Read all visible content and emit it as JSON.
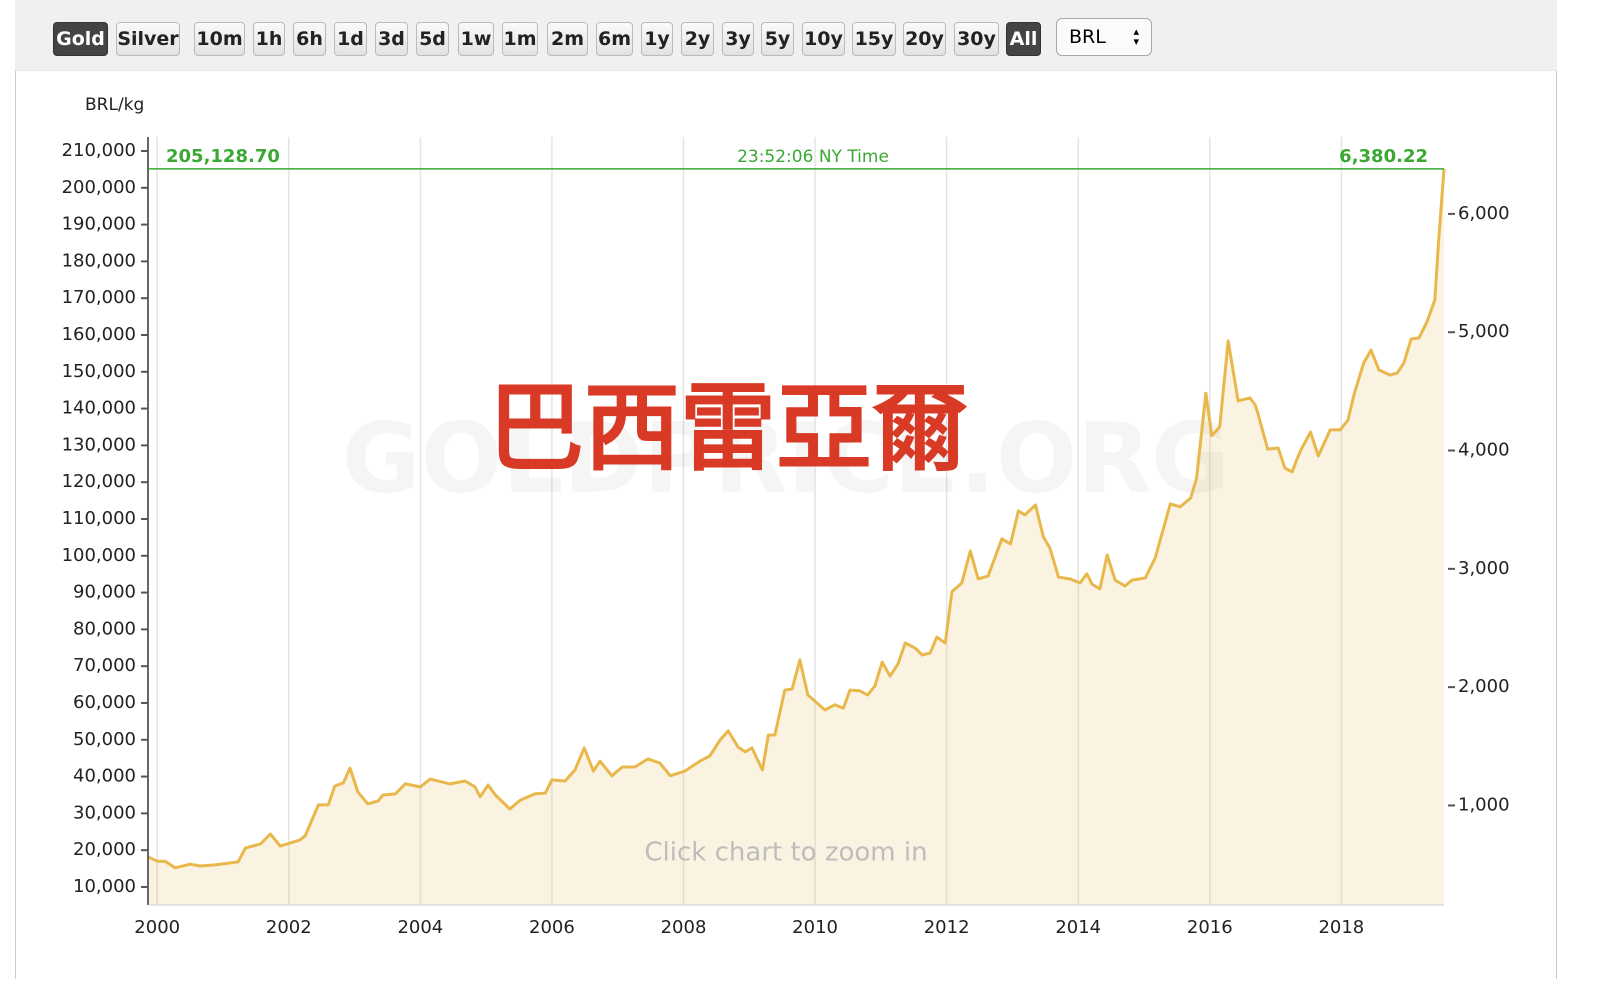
{
  "toolbar": {
    "metals": [
      "Gold",
      "Silver"
    ],
    "ranges": [
      "10m",
      "1h",
      "6h",
      "1d",
      "3d",
      "5d",
      "1w",
      "1m",
      "2m",
      "6m",
      "1y",
      "2y",
      "3y",
      "5y",
      "10y",
      "15y",
      "20y",
      "30y",
      "All"
    ],
    "currency": "BRL"
  },
  "chart_data": {
    "type": "area",
    "annotation": "巴西雷亞爾",
    "watermark": "GOLDPRICE.ORG",
    "hint": "Click chart to zoom in",
    "y_label": "BRL/kg",
    "price_line": {
      "value": 205128.7,
      "label": "205,128.70"
    },
    "price_line_y2": {
      "value": 6380.22,
      "label": "6,380.22"
    },
    "price_time": "23:52:06 NY Time",
    "xlim": [
      1999.86,
      2019.56
    ],
    "xticks": [
      2000,
      2002,
      2004,
      2006,
      2008,
      2010,
      2012,
      2014,
      2016,
      2018
    ],
    "ylim": [
      5100,
      213800
    ],
    "yticks": [
      {
        "value": 10000,
        "label": "10,000"
      },
      {
        "value": 20000,
        "label": "20,000"
      },
      {
        "value": 30000,
        "label": "30,000"
      },
      {
        "value": 40000,
        "label": "40,000"
      },
      {
        "value": 50000,
        "label": "50,000"
      },
      {
        "value": 60000,
        "label": "60,000"
      },
      {
        "value": 70000,
        "label": "70,000"
      },
      {
        "value": 80000,
        "label": "80,000"
      },
      {
        "value": 90000,
        "label": "90,000"
      },
      {
        "value": 100000,
        "label": "100,000"
      },
      {
        "value": 110000,
        "label": "110,000"
      },
      {
        "value": 120000,
        "label": "120,000"
      },
      {
        "value": 130000,
        "label": "130,000"
      },
      {
        "value": 140000,
        "label": "140,000"
      },
      {
        "value": 150000,
        "label": "150,000"
      },
      {
        "value": 160000,
        "label": "160,000"
      },
      {
        "value": 170000,
        "label": "170,000"
      },
      {
        "value": 180000,
        "label": "180,000"
      },
      {
        "value": 190000,
        "label": "190,000"
      },
      {
        "value": 200000,
        "label": "200,000"
      },
      {
        "value": 210000,
        "label": "210,000"
      }
    ],
    "y2lim": [
      158.6,
      6650
    ],
    "y2ticks": [
      {
        "value": 1000,
        "label": "1,000"
      },
      {
        "value": 2000,
        "label": "2,000"
      },
      {
        "value": 3000,
        "label": "3,000"
      },
      {
        "value": 4000,
        "label": "4,000"
      },
      {
        "value": 5000,
        "label": "5,000"
      },
      {
        "value": 6000,
        "label": "6,000"
      }
    ],
    "grid": true,
    "series": [
      {
        "color": "#e9b84c",
        "x": [
          1999.86,
          2000.0,
          2000.12,
          2000.27,
          2000.5,
          2000.65,
          2000.88,
          2001.1,
          2001.23,
          2001.34,
          2001.57,
          2001.72,
          2001.87,
          2002.17,
          2002.25,
          2002.45,
          2002.6,
          2002.7,
          2002.83,
          2002.93,
          2003.05,
          2003.2,
          2003.36,
          2003.43,
          2003.62,
          2003.77,
          2004.0,
          2004.15,
          2004.45,
          2004.68,
          2004.83,
          2004.91,
          2005.03,
          2005.14,
          2005.36,
          2005.52,
          2005.74,
          2005.9,
          2006.0,
          2006.2,
          2006.35,
          2006.49,
          2006.63,
          2006.73,
          2006.91,
          2007.07,
          2007.26,
          2007.46,
          2007.64,
          2007.8,
          2008.02,
          2008.25,
          2008.4,
          2008.56,
          2008.68,
          2008.83,
          2008.94,
          2009.04,
          2009.2,
          2009.29,
          2009.39,
          2009.54,
          2009.65,
          2009.77,
          2009.89,
          2010.15,
          2010.3,
          2010.43,
          2010.53,
          2010.68,
          2010.8,
          2010.91,
          2011.02,
          2011.14,
          2011.26,
          2011.37,
          2011.52,
          2011.63,
          2011.75,
          2011.85,
          2011.98,
          2012.08,
          2012.23,
          2012.36,
          2012.48,
          2012.63,
          2012.84,
          2012.97,
          2013.09,
          2013.19,
          2013.35,
          2013.47,
          2013.57,
          2013.7,
          2013.88,
          2014.03,
          2014.13,
          2014.21,
          2014.33,
          2014.44,
          2014.56,
          2014.71,
          2014.82,
          2015.02,
          2015.17,
          2015.4,
          2015.55,
          2015.71,
          2015.8,
          2015.94,
          2016.03,
          2016.15,
          2016.28,
          2016.43,
          2016.61,
          2016.69,
          2016.73,
          2016.88,
          2017.04,
          2017.14,
          2017.25,
          2017.37,
          2017.53,
          2017.65,
          2017.83,
          2017.98,
          2018.1,
          2018.19,
          2018.34,
          2018.45,
          2018.57,
          2018.74,
          2018.85,
          2018.95,
          2019.06,
          2019.18,
          2019.3,
          2019.42,
          2019.48,
          2019.56
        ],
        "values": [
          18200,
          17000,
          17000,
          15200,
          16200,
          15700,
          16000,
          16500,
          16800,
          20600,
          21700,
          24400,
          21100,
          22800,
          23900,
          32300,
          32300,
          37400,
          38300,
          42300,
          35800,
          32600,
          33400,
          35000,
          35300,
          38000,
          37200,
          39300,
          38000,
          38800,
          37200,
          34500,
          37700,
          35000,
          31200,
          33600,
          35300,
          35500,
          39100,
          38800,
          41800,
          47800,
          41500,
          44200,
          40200,
          42600,
          42600,
          44800,
          43700,
          40200,
          41500,
          44200,
          45600,
          50000,
          52400,
          48000,
          46700,
          47800,
          41800,
          51300,
          51300,
          63500,
          63800,
          71700,
          62200,
          58100,
          59500,
          58600,
          63500,
          63300,
          62200,
          64600,
          71100,
          67300,
          70600,
          76300,
          74900,
          73000,
          73600,
          77900,
          76300,
          90200,
          92600,
          101300,
          93700,
          94500,
          104600,
          103200,
          112200,
          111100,
          113800,
          105100,
          102100,
          94200,
          93700,
          92600,
          95100,
          92300,
          91000,
          100200,
          93400,
          91800,
          93400,
          94000,
          99400,
          114100,
          113300,
          115700,
          121100,
          144200,
          132600,
          135000,
          158400,
          142100,
          142900,
          141000,
          138800,
          129000,
          129300,
          123900,
          122800,
          128200,
          133600,
          127100,
          134200,
          134200,
          136900,
          143700,
          152400,
          155900,
          150500,
          149100,
          149700,
          152400,
          158900,
          159200,
          163500,
          169500,
          185800,
          205128.7
        ]
      }
    ]
  }
}
